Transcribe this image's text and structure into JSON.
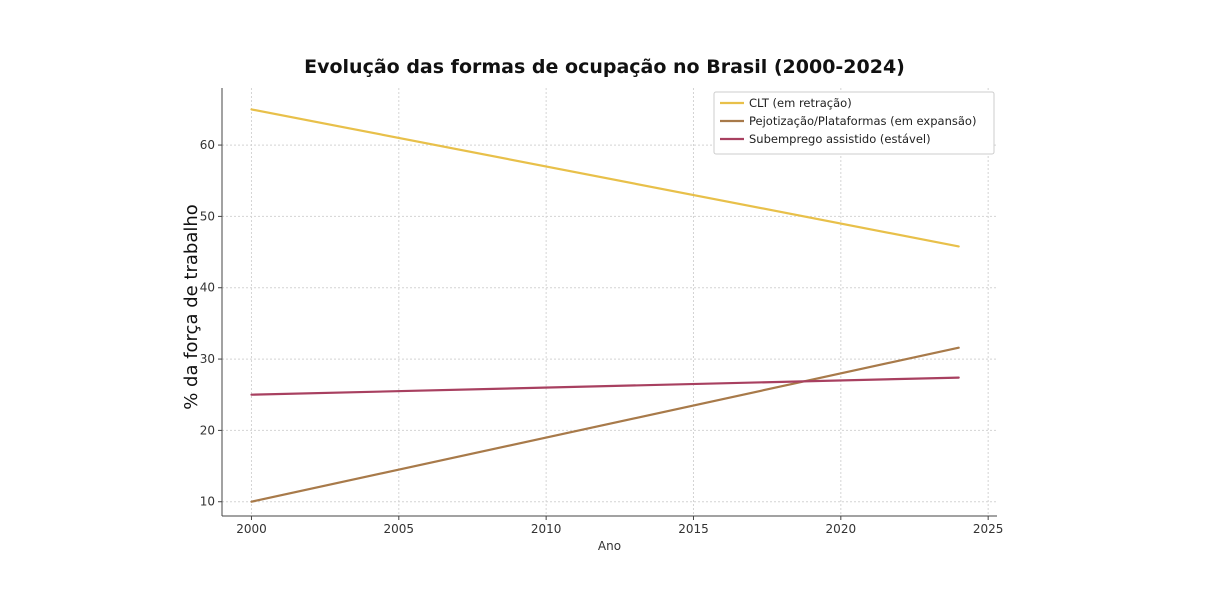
{
  "chart_data": {
    "type": "line",
    "title": "Evolução das formas de ocupação no Brasil (2000-2024)",
    "xlabel": "Ano",
    "ylabel": "% da força de trabalho",
    "xlim": [
      1999,
      2025.3
    ],
    "ylim": [
      8,
      68
    ],
    "xticks": [
      2000,
      2005,
      2010,
      2015,
      2020,
      2025
    ],
    "yticks": [
      10,
      20,
      30,
      40,
      50,
      60
    ],
    "grid": true,
    "legend_position": "top-right",
    "series": [
      {
        "name": "CLT (em retração)",
        "color": "#e8c04a",
        "x": [
          2000,
          2024
        ],
        "y": [
          65,
          45.8
        ]
      },
      {
        "name": "Pejotização/Plataformas (em expansão)",
        "color": "#a87a4a",
        "x": [
          2000,
          2024
        ],
        "y": [
          10,
          31.6
        ]
      },
      {
        "name": "Subemprego assistido (estável)",
        "color": "#a84060",
        "x": [
          2000,
          2024
        ],
        "y": [
          25,
          27.4
        ]
      }
    ]
  }
}
